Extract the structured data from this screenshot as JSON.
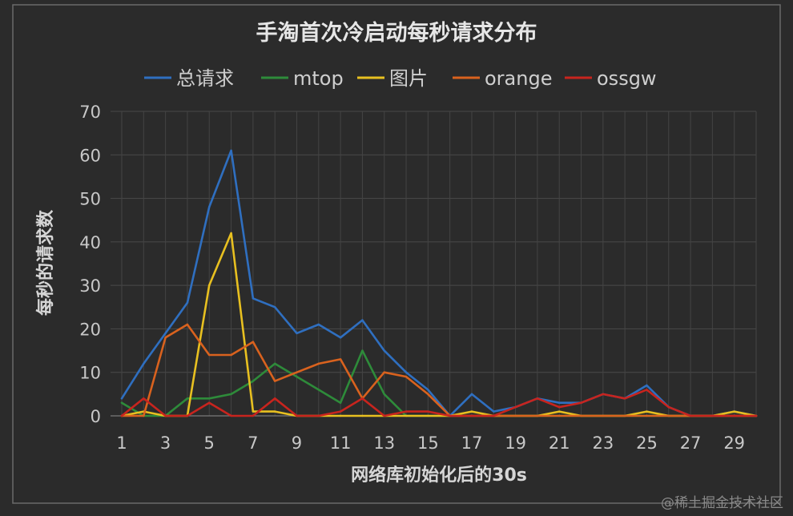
{
  "chart_data": {
    "type": "line",
    "title": "手淘首次冷启动每秒请求分布",
    "xlabel": "网络库初始化后的30s",
    "ylabel": "每秒的请求数",
    "ylim": [
      0,
      70
    ],
    "yticks": [
      0,
      10,
      20,
      30,
      40,
      50,
      60,
      70
    ],
    "xlim": [
      1,
      30
    ],
    "xticks": [
      1,
      3,
      5,
      7,
      9,
      11,
      13,
      15,
      17,
      19,
      21,
      23,
      25,
      27,
      29
    ],
    "grid": true,
    "legend_position": "top",
    "x": [
      1,
      2,
      3,
      4,
      5,
      6,
      7,
      8,
      9,
      10,
      11,
      12,
      13,
      14,
      15,
      16,
      17,
      18,
      19,
      20,
      21,
      22,
      23,
      24,
      25,
      26,
      27,
      28,
      29,
      30
    ],
    "series": [
      {
        "name": "总请求",
        "color": "#2f6fc0",
        "values": [
          4,
          12,
          19,
          26,
          48,
          61,
          27,
          25,
          19,
          21,
          18,
          22,
          15,
          10,
          6,
          0,
          5,
          1,
          2,
          4,
          3,
          3,
          5,
          4,
          7,
          2,
          0,
          0,
          1,
          0
        ]
      },
      {
        "name": "mtop",
        "color": "#2e8b3a",
        "values": [
          3,
          0,
          0,
          4,
          4,
          5,
          8,
          12,
          9,
          6,
          3,
          15,
          5,
          0,
          0,
          0,
          0,
          0,
          0,
          0,
          0,
          0,
          0,
          0,
          0,
          0,
          0,
          0,
          0,
          0
        ]
      },
      {
        "name": "图片",
        "color": "#e8c020",
        "values": [
          0,
          1,
          0,
          0,
          30,
          42,
          1,
          1,
          0,
          0,
          0,
          0,
          0,
          0,
          0,
          0,
          1,
          0,
          0,
          0,
          1,
          0,
          0,
          0,
          1,
          0,
          0,
          0,
          1,
          0
        ]
      },
      {
        "name": "orange",
        "color": "#d9621e",
        "values": [
          0,
          0,
          18,
          21,
          14,
          14,
          17,
          8,
          10,
          12,
          13,
          4,
          10,
          9,
          5,
          0,
          0,
          0,
          0,
          0,
          0,
          0,
          0,
          0,
          0,
          0,
          0,
          0,
          0,
          0
        ]
      },
      {
        "name": "ossgw",
        "color": "#c8241e",
        "values": [
          0,
          4,
          0,
          0,
          3,
          0,
          0,
          4,
          0,
          0,
          1,
          4,
          0,
          1,
          1,
          0,
          0,
          0,
          2,
          4,
          2,
          3,
          5,
          4,
          6,
          2,
          0,
          0,
          0,
          0
        ]
      }
    ]
  },
  "watermark": "@稀土掘金技术社区"
}
